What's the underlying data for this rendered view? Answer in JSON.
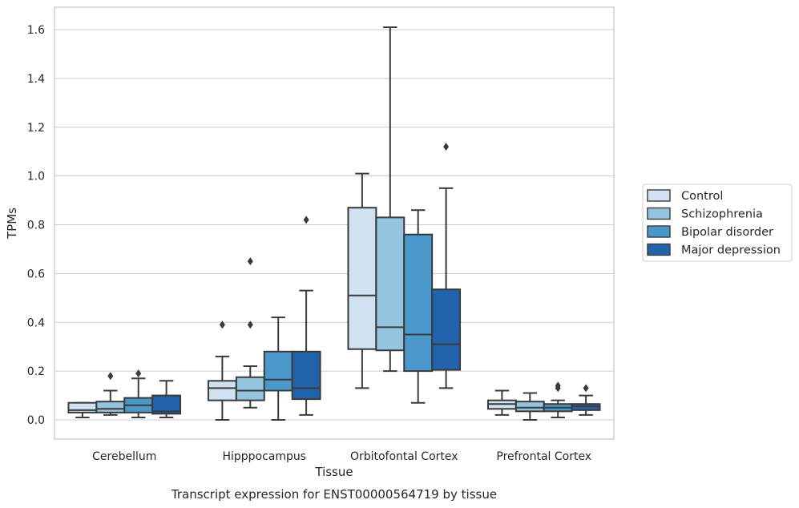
{
  "chart_data": {
    "type": "boxplot",
    "caption": "Transcript expression for ENST00000564719 by tissue",
    "xlabel": "Tissue",
    "ylabel": "TPMs",
    "ylim": [
      -0.08,
      1.69
    ],
    "yticks": [
      0.0,
      0.2,
      0.4,
      0.6,
      0.8,
      1.0,
      1.2,
      1.4,
      1.6
    ],
    "ytick_labels": [
      "0.0",
      "0.2",
      "0.4",
      "0.6",
      "0.8",
      "1.0",
      "1.2",
      "1.4",
      "1.6"
    ],
    "grid": "horizontal",
    "legend_position": "right",
    "categories": [
      "Cerebellum",
      "Hipppocampus",
      "Orbitofontal Cortex",
      "Prefrontal Cortex"
    ],
    "series": [
      {
        "name": "Control",
        "color": "#d0e1f2",
        "boxes": [
          {
            "whislo": 0.01,
            "q1": 0.03,
            "med": 0.04,
            "q3": 0.07,
            "whishi": 0.07,
            "fliers": []
          },
          {
            "whislo": 0.0,
            "q1": 0.08,
            "med": 0.13,
            "q3": 0.16,
            "whishi": 0.26,
            "fliers": [
              0.39
            ]
          },
          {
            "whislo": 0.13,
            "q1": 0.29,
            "med": 0.51,
            "q3": 0.87,
            "whishi": 1.01,
            "fliers": []
          },
          {
            "whislo": 0.02,
            "q1": 0.045,
            "med": 0.065,
            "q3": 0.08,
            "whishi": 0.12,
            "fliers": []
          }
        ]
      },
      {
        "name": "Schizophrenia",
        "color": "#94c4df",
        "boxes": [
          {
            "whislo": 0.02,
            "q1": 0.03,
            "med": 0.045,
            "q3": 0.075,
            "whishi": 0.12,
            "fliers": [
              0.18
            ]
          },
          {
            "whislo": 0.05,
            "q1": 0.08,
            "med": 0.12,
            "q3": 0.175,
            "whishi": 0.22,
            "fliers": [
              0.39,
              0.65
            ]
          },
          {
            "whislo": 0.2,
            "q1": 0.285,
            "med": 0.38,
            "q3": 0.83,
            "whishi": 1.61,
            "fliers": []
          },
          {
            "whislo": 0.0,
            "q1": 0.035,
            "med": 0.05,
            "q3": 0.075,
            "whishi": 0.11,
            "fliers": []
          }
        ]
      },
      {
        "name": "Bipolar disorder",
        "color": "#4a98c9",
        "boxes": [
          {
            "whislo": 0.01,
            "q1": 0.03,
            "med": 0.06,
            "q3": 0.09,
            "whishi": 0.17,
            "fliers": [
              0.19
            ]
          },
          {
            "whislo": 0.0,
            "q1": 0.12,
            "med": 0.165,
            "q3": 0.28,
            "whishi": 0.42,
            "fliers": []
          },
          {
            "whislo": 0.07,
            "q1": 0.2,
            "med": 0.35,
            "q3": 0.76,
            "whishi": 0.86,
            "fliers": []
          },
          {
            "whislo": 0.01,
            "q1": 0.035,
            "med": 0.05,
            "q3": 0.065,
            "whishi": 0.08,
            "fliers": [
              0.13,
              0.14
            ]
          }
        ]
      },
      {
        "name": "Major depression",
        "color": "#2163aa",
        "boxes": [
          {
            "whislo": 0.01,
            "q1": 0.025,
            "med": 0.035,
            "q3": 0.1,
            "whishi": 0.16,
            "fliers": []
          },
          {
            "whislo": 0.02,
            "q1": 0.085,
            "med": 0.13,
            "q3": 0.28,
            "whishi": 0.53,
            "fliers": [
              0.82
            ]
          },
          {
            "whislo": 0.13,
            "q1": 0.205,
            "med": 0.31,
            "q3": 0.535,
            "whishi": 0.95,
            "fliers": [
              1.12
            ]
          },
          {
            "whislo": 0.02,
            "q1": 0.04,
            "med": 0.055,
            "q3": 0.065,
            "whishi": 0.1,
            "fliers": [
              0.13
            ]
          }
        ]
      }
    ]
  }
}
